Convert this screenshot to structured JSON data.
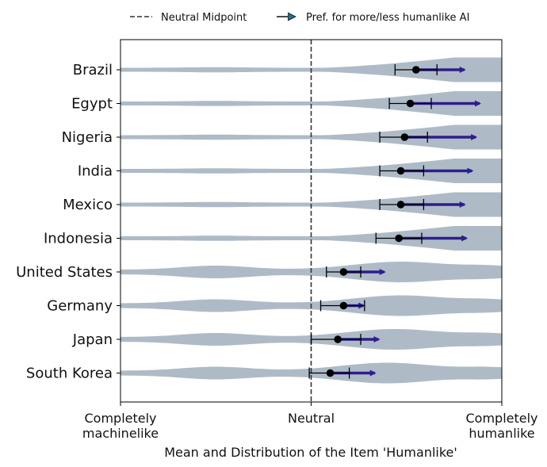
{
  "chart_data": {
    "type": "violin",
    "xlabel": "Mean and Distribution of the Item 'Humanlike'",
    "ylabel": "",
    "xlim": [
      -1,
      1
    ],
    "xticks": [
      {
        "value": -1,
        "label": "Completely\nmachinelike"
      },
      {
        "value": 0,
        "label": "Neutral"
      },
      {
        "value": 1,
        "label": "Completely\nhumanlike"
      }
    ],
    "legend": {
      "position": "top-center",
      "entries": [
        {
          "label": "Neutral Midpoint",
          "style": "dashed-line"
        },
        {
          "label": "Pref. for more/less humanlike AI",
          "style": "arrow"
        }
      ]
    },
    "colors": {
      "violin": "#aebbc7",
      "arrow": "#2e1e8c",
      "mean": "#000000",
      "midpoint": "#333333"
    },
    "series": [
      {
        "category": "Brazil",
        "mean": 0.55,
        "ci": [
          0.44,
          0.66
        ],
        "pref_end": 0.82
      },
      {
        "category": "Egypt",
        "mean": 0.52,
        "ci": [
          0.41,
          0.63
        ],
        "pref_end": 0.9
      },
      {
        "category": "Nigeria",
        "mean": 0.49,
        "ci": [
          0.36,
          0.61
        ],
        "pref_end": 0.88
      },
      {
        "category": "India",
        "mean": 0.47,
        "ci": [
          0.36,
          0.59
        ],
        "pref_end": 0.86
      },
      {
        "category": "Mexico",
        "mean": 0.47,
        "ci": [
          0.36,
          0.59
        ],
        "pref_end": 0.82
      },
      {
        "category": "Indonesia",
        "mean": 0.46,
        "ci": [
          0.34,
          0.58
        ],
        "pref_end": 0.83
      },
      {
        "category": "United States",
        "mean": 0.17,
        "ci": [
          0.08,
          0.26
        ],
        "pref_end": 0.4
      },
      {
        "category": "Germany",
        "mean": 0.17,
        "ci": [
          0.05,
          0.28
        ],
        "pref_end": 0.29
      },
      {
        "category": "Japan",
        "mean": 0.14,
        "ci": [
          0.0,
          0.26
        ],
        "pref_end": 0.37
      },
      {
        "category": "South Korea",
        "mean": 0.1,
        "ci": [
          -0.01,
          0.2
        ],
        "pref_end": 0.35
      }
    ]
  }
}
